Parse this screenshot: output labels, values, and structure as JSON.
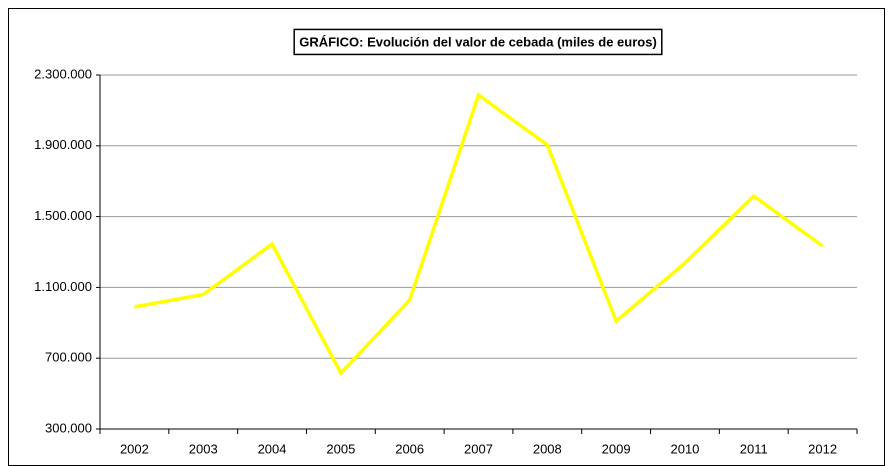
{
  "chart_data": {
    "type": "line",
    "title": "GRÁFICO: Evolución del valor de cebada (miles de euros)",
    "categories": [
      "2002",
      "2003",
      "2004",
      "2005",
      "2006",
      "2007",
      "2008",
      "2009",
      "2010",
      "2011",
      "2012"
    ],
    "series": [
      {
        "name": "Valor de cebada",
        "color": "#ffff00",
        "values": [
          990000,
          1060000,
          1345000,
          616000,
          1029000,
          2187000,
          1905000,
          910000,
          1238000,
          1616000,
          1334000
        ]
      }
    ],
    "ylim": [
      300000,
      2300000
    ],
    "yticks": [
      {
        "value": 300000,
        "label": "300.000"
      },
      {
        "value": 700000,
        "label": "700.000"
      },
      {
        "value": 1100000,
        "label": "1.100.000"
      },
      {
        "value": 1500000,
        "label": "1.500.000"
      },
      {
        "value": 1900000,
        "label": "1.900.000"
      },
      {
        "value": 2300000,
        "label": "2.300.000"
      }
    ],
    "grid": true
  }
}
